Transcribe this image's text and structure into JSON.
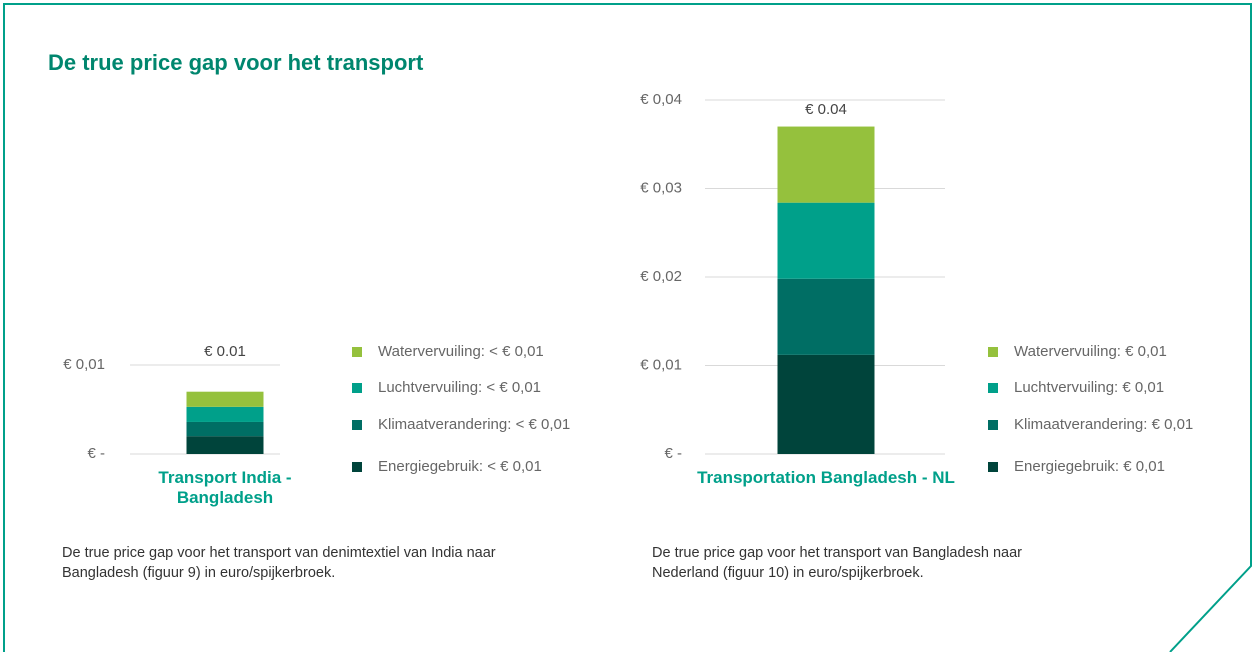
{
  "title": "De true price gap voor het transport",
  "chart_data": [
    {
      "type": "bar",
      "categories": [
        "Transport India - Bangladesh"
      ],
      "series": [
        {
          "name": "Energiegebruik: < € 0,01",
          "color": "#00443b",
          "values": [
            0.002
          ]
        },
        {
          "name": "Klimaatverandering: < € 0,01",
          "color": "#006e64",
          "values": [
            0.0016
          ]
        },
        {
          "name": "Luchtvervuiling: < € 0,01",
          "color": "#00a08a",
          "values": [
            0.0017
          ]
        },
        {
          "name": "Watervervuiling: < € 0,01",
          "color": "#95c13d",
          "values": [
            0.0017
          ]
        }
      ],
      "total_label": "€ 0.01",
      "ylim": [
        0,
        0.01
      ],
      "yticks": [
        {
          "value": 0,
          "label": "€ -"
        },
        {
          "value": 0.01,
          "label": "€ 0,01"
        }
      ],
      "grid": true,
      "caption": "De true price gap voor het transport van denimtextiel van India naar Bangladesh (figuur 9) in euro/spijkerbroek."
    },
    {
      "type": "bar",
      "categories": [
        "Transportation Bangladesh - NL"
      ],
      "series": [
        {
          "name": "Energiegebruik: € 0,01",
          "color": "#00443b",
          "values": [
            0.0112
          ]
        },
        {
          "name": "Klimaatverandering: € 0,01",
          "color": "#006e64",
          "values": [
            0.0086
          ]
        },
        {
          "name": "Luchtvervuiling: € 0,01",
          "color": "#00a08a",
          "values": [
            0.0086
          ]
        },
        {
          "name": "Watervervuiling: € 0,01",
          "color": "#95c13d",
          "values": [
            0.0086
          ]
        }
      ],
      "total_label": "€ 0.04",
      "ylim": [
        0,
        0.04
      ],
      "yticks": [
        {
          "value": 0,
          "label": "€ -"
        },
        {
          "value": 0.01,
          "label": "€ 0,01"
        },
        {
          "value": 0.02,
          "label": "€ 0,02"
        },
        {
          "value": 0.03,
          "label": "€ 0,03"
        },
        {
          "value": 0.04,
          "label": "€ 0,04"
        }
      ],
      "grid": true,
      "caption": "De true price gap voor het transport van Bangladesh naar Nederland (figuur 10) in euro/spijkerbroek."
    }
  ]
}
